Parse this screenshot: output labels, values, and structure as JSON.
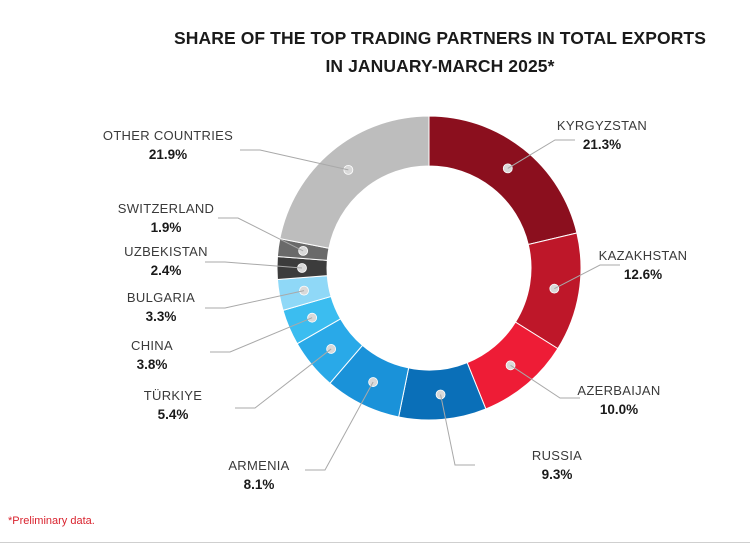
{
  "chart_data": {
    "type": "pie",
    "title_line1": "SHARE OF THE TOP TRADING PARTNERS IN TOTAL EXPORTS",
    "title_line2": "IN JANUARY-MARCH 2025*",
    "unit": "%",
    "slices": [
      {
        "label": "KYRGYZSTAN",
        "value": 21.3,
        "display": "21.3%",
        "color": "#8b0f1e"
      },
      {
        "label": "KAZAKHSTAN",
        "value": 12.6,
        "display": "12.6%",
        "color": "#be1729"
      },
      {
        "label": "AZERBAIJAN",
        "value": 10.0,
        "display": "10.0%",
        "color": "#ee1c36"
      },
      {
        "label": "RUSSIA",
        "value": 9.3,
        "display": "9.3%",
        "color": "#0a6fb8"
      },
      {
        "label": "ARMENIA",
        "value": 8.1,
        "display": "8.1%",
        "color": "#1a92d9"
      },
      {
        "label": "TÜRKIYE",
        "value": 5.4,
        "display": "5.4%",
        "color": "#29a9e8"
      },
      {
        "label": "CHINA",
        "value": 3.8,
        "display": "3.8%",
        "color": "#3bbdf0"
      },
      {
        "label": "BULGARIA",
        "value": 3.3,
        "display": "3.3%",
        "color": "#8fd8f7"
      },
      {
        "label": "UZBEKISTAN",
        "value": 2.4,
        "display": "2.4%",
        "color": "#3c3c3c"
      },
      {
        "label": "SWITZERLAND",
        "value": 1.9,
        "display": "1.9%",
        "color": "#6a6a6a"
      },
      {
        "label": "OTHER COUNTRIES",
        "value": 21.9,
        "display": "21.9%",
        "color": "#bdbdbd"
      }
    ]
  },
  "footnote": "*Preliminary data."
}
